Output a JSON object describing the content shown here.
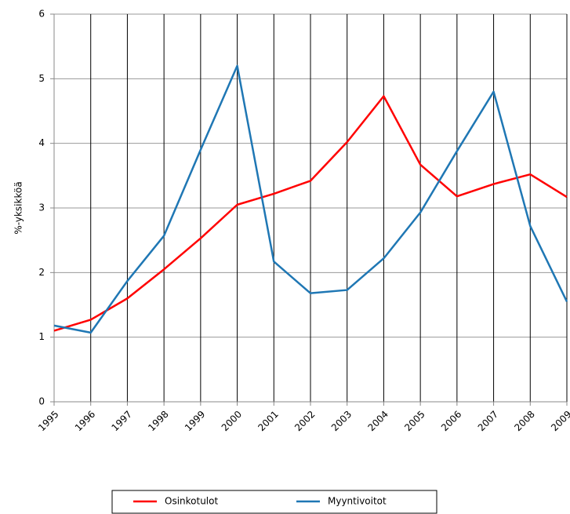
{
  "chart_data": {
    "type": "line",
    "ylabel": "%-yksikköä",
    "categories": [
      "1995",
      "1996",
      "1997",
      "1998",
      "1999",
      "2000",
      "2001",
      "2002",
      "2003",
      "2004",
      "2005",
      "2006",
      "2007",
      "2008",
      "2009"
    ],
    "series": [
      {
        "name": "Osinkotulot",
        "color": "#ff0000",
        "values": [
          1.1,
          1.27,
          1.6,
          2.05,
          2.53,
          3.05,
          3.22,
          3.42,
          4.02,
          4.73,
          3.67,
          3.18,
          3.37,
          3.52,
          3.17
        ]
      },
      {
        "name": "Myyntivoitot",
        "color": "#1f77b4",
        "values": [
          1.18,
          1.07,
          1.87,
          2.57,
          3.9,
          5.2,
          2.17,
          1.68,
          1.73,
          2.22,
          2.93,
          3.88,
          4.8,
          2.72,
          1.55
        ]
      }
    ],
    "ylim": [
      0,
      6
    ],
    "yticks": [
      0,
      1,
      2,
      3,
      4,
      5,
      6
    ],
    "grid": true,
    "legend": "bottom"
  }
}
